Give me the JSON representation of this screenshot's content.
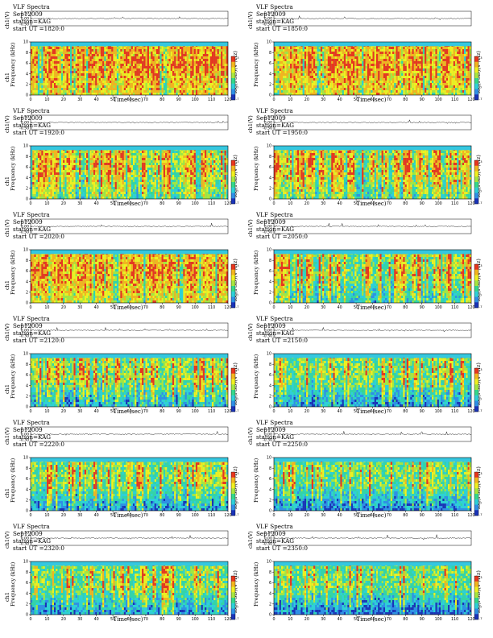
{
  "chart_data": [
    {
      "type": "heatmap",
      "title": "VLF Spectra",
      "date": "Sep12009",
      "station": "station=KAG",
      "start": "start  UT =1820:0",
      "wave_ylabel": "ch1(V)",
      "wave_yticks": [
        "0.50",
        "0.00",
        "-0.50"
      ],
      "ylabel": "Frequency (kHz)",
      "ylabel_prefix": "ch1",
      "xlabel": "Time (sec)",
      "xlim": [
        0,
        120
      ],
      "ylim": [
        0,
        10
      ],
      "xticks": [
        0,
        10,
        20,
        30,
        40,
        50,
        60,
        70,
        80,
        90,
        100,
        110,
        120
      ],
      "yticks": [
        0,
        2,
        4,
        6,
        8,
        10
      ],
      "colorbar_label": "log(PSD)(V²/Hz)",
      "colorbar_range": [
        -7,
        -3
      ],
      "colorbar_ticks": [
        "-3",
        "-7"
      ],
      "activity": 0.92,
      "seed": 11
    },
    {
      "type": "heatmap",
      "title": "VLF Spectra",
      "date": "Sep12009",
      "station": "station=KAG",
      "start": "start  UT =1850:0",
      "wave_ylabel": "ch1(V)",
      "wave_yticks": [
        "0.50",
        "0.00",
        "-0.50"
      ],
      "ylabel": "Frequency (kHz)",
      "ylabel_prefix": "",
      "xlabel": "Time (sec)",
      "xlim": [
        0,
        120
      ],
      "ylim": [
        0,
        10
      ],
      "xticks": [
        0,
        10,
        20,
        30,
        40,
        50,
        60,
        70,
        80,
        90,
        100,
        110,
        120
      ],
      "yticks": [
        0,
        2,
        4,
        6,
        8,
        10
      ],
      "colorbar_label": "log(PSD)(V²/Hz)",
      "colorbar_range": [
        -7,
        -3
      ],
      "colorbar_ticks": [
        "-3",
        "-7"
      ],
      "activity": 0.9,
      "seed": 23
    },
    {
      "type": "heatmap",
      "title": "VLF Spectra",
      "date": "Sep12009",
      "station": "station=KAG",
      "start": "start  UT =1920:0",
      "wave_ylabel": "ch1(V)",
      "wave_yticks": [
        "0.50",
        "0.00",
        "-0.50"
      ],
      "ylabel": "Frequency (kHz)",
      "ylabel_prefix": "ch1",
      "xlabel": "Time (sec)",
      "xlim": [
        0,
        120
      ],
      "ylim": [
        0,
        10
      ],
      "xticks": [
        0,
        10,
        20,
        30,
        40,
        50,
        60,
        70,
        80,
        90,
        100,
        110,
        120
      ],
      "yticks": [
        0,
        2,
        4,
        6,
        8,
        10
      ],
      "colorbar_label": "log(PSD)(V²/Hz)",
      "colorbar_range": [
        -7,
        -3
      ],
      "colorbar_ticks": [
        "-3",
        "-7"
      ],
      "activity": 0.72,
      "seed": 37
    },
    {
      "type": "heatmap",
      "title": "VLF Spectra",
      "date": "Sep12009",
      "station": "station=KAG",
      "start": "start  UT =1950:0",
      "wave_ylabel": "ch1(V)",
      "wave_yticks": [
        "0.50",
        "0.00",
        "-0.50"
      ],
      "ylabel": "Frequency (kHz)",
      "ylabel_prefix": "",
      "xlabel": "Time (sec)",
      "xlim": [
        0,
        120
      ],
      "ylim": [
        0,
        10
      ],
      "xticks": [
        0,
        10,
        20,
        30,
        40,
        50,
        60,
        70,
        80,
        90,
        100,
        110,
        120
      ],
      "yticks": [
        0,
        2,
        4,
        6,
        8,
        10
      ],
      "colorbar_label": "log(PSD)(V²/Hz)",
      "colorbar_range": [
        -7,
        -3
      ],
      "colorbar_ticks": [
        "-3",
        "-7"
      ],
      "activity": 0.7,
      "seed": 41
    },
    {
      "type": "heatmap",
      "title": "VLF Spectra",
      "date": "Sep12009",
      "station": "station=KAG",
      "start": "start  UT =2020:0",
      "wave_ylabel": "ch1(V)",
      "wave_yticks": [
        "0.50",
        "0.00",
        "-0.50"
      ],
      "ylabel": "Frequency (kHz)",
      "ylabel_prefix": "ch1",
      "xlabel": "Time (sec)",
      "xlim": [
        0,
        120
      ],
      "ylim": [
        0,
        10
      ],
      "xticks": [
        0,
        10,
        20,
        30,
        40,
        50,
        60,
        70,
        80,
        90,
        100,
        110,
        120
      ],
      "yticks": [
        0,
        2,
        4,
        6,
        8,
        10
      ],
      "colorbar_label": "log(PSD)(V²/Hz)",
      "colorbar_range": [
        -7,
        -3
      ],
      "colorbar_ticks": [
        "-3",
        "-7"
      ],
      "activity": 0.88,
      "seed": 53
    },
    {
      "type": "heatmap",
      "title": "VLF Spectra",
      "date": "Sep12009",
      "station": "station=KAG",
      "start": "start  UT =2050:0",
      "wave_ylabel": "ch1(V)",
      "wave_yticks": [
        "0.50",
        "0.00",
        "-0.50"
      ],
      "ylabel": "Frequency (kHz)",
      "ylabel_prefix": "",
      "xlabel": "Time (sec)",
      "xlim": [
        0,
        120
      ],
      "ylim": [
        0,
        10
      ],
      "xticks": [
        0,
        10,
        20,
        30,
        40,
        50,
        60,
        70,
        80,
        90,
        100,
        110,
        120
      ],
      "yticks": [
        0,
        2,
        4,
        6,
        8,
        10
      ],
      "colorbar_label": "log(PSD)(V²/Hz)",
      "colorbar_range": [
        -7,
        -3
      ],
      "colorbar_ticks": [
        "-3",
        "-7"
      ],
      "activity": 0.62,
      "seed": 67
    },
    {
      "type": "heatmap",
      "title": "VLF Spectra",
      "date": "Sep12009",
      "station": "station=KAG",
      "start": "start  UT =2120:0",
      "wave_ylabel": "ch1(V)",
      "wave_yticks": [
        "0.30",
        "0.00",
        "-0.30"
      ],
      "ylabel": "Frequency (kHz)",
      "ylabel_prefix": "ch1",
      "xlabel": "Time (sec)",
      "xlim": [
        0,
        120
      ],
      "ylim": [
        0,
        10
      ],
      "xticks": [
        0,
        10,
        20,
        30,
        40,
        50,
        60,
        70,
        80,
        90,
        100,
        110,
        120
      ],
      "yticks": [
        0,
        2,
        4,
        6,
        8,
        10
      ],
      "colorbar_label": "log(PSD)(V²/Hz)",
      "colorbar_range": [
        -7,
        -3
      ],
      "colorbar_ticks": [
        "-3",
        "-7"
      ],
      "activity": 0.35,
      "seed": 71
    },
    {
      "type": "heatmap",
      "title": "VLF Spectra",
      "date": "Sep12009",
      "station": "station=KAG",
      "start": "start  UT =2150:0",
      "wave_ylabel": "ch1(V)",
      "wave_yticks": [
        "0.30",
        "0.00",
        "-0.30"
      ],
      "ylabel": "Frequency (kHz)",
      "ylabel_prefix": "",
      "xlabel": "Time (sec)",
      "xlim": [
        0,
        120
      ],
      "ylim": [
        0,
        10
      ],
      "xticks": [
        0,
        10,
        20,
        30,
        40,
        50,
        60,
        70,
        80,
        90,
        100,
        110,
        120
      ],
      "yticks": [
        0,
        2,
        4,
        6,
        8,
        10
      ],
      "colorbar_label": "log(PSD)(V²/Hz)",
      "colorbar_range": [
        -7,
        -3
      ],
      "colorbar_ticks": [
        "-3",
        "-7"
      ],
      "activity": 0.3,
      "seed": 83
    },
    {
      "type": "heatmap",
      "title": "VLF Spectra",
      "date": "Sep12009",
      "station": "station=KAG",
      "start": "start  UT =2220:0",
      "wave_ylabel": "ch1(V)",
      "wave_yticks": [
        "0.30",
        "0.00",
        "-0.30"
      ],
      "ylabel": "Frequency (kHz)",
      "ylabel_prefix": "ch1",
      "xlabel": "Time (sec)",
      "xlim": [
        0,
        120
      ],
      "ylim": [
        0,
        10
      ],
      "xticks": [
        0,
        10,
        20,
        30,
        40,
        50,
        60,
        70,
        80,
        90,
        100,
        110,
        120
      ],
      "yticks": [
        0,
        2,
        4,
        6,
        8,
        10
      ],
      "colorbar_label": "log(PSD)(V²/Hz)",
      "colorbar_range": [
        -7,
        -3
      ],
      "colorbar_ticks": [
        "-3",
        "-7"
      ],
      "activity": 0.28,
      "seed": 97
    },
    {
      "type": "heatmap",
      "title": "VLF Spectra",
      "date": "Sep12009",
      "station": "station=KAG",
      "start": "start  UT =2250:0",
      "wave_ylabel": "ch1(V)",
      "wave_yticks": [
        "0.30",
        "0.00",
        "-0.30"
      ],
      "ylabel": "Frequency (kHz)",
      "ylabel_prefix": "",
      "xlabel": "Time (sec)",
      "xlim": [
        0,
        120
      ],
      "ylim": [
        0,
        10
      ],
      "xticks": [
        0,
        10,
        20,
        30,
        40,
        50,
        60,
        70,
        80,
        90,
        100,
        110,
        120
      ],
      "yticks": [
        0,
        2,
        4,
        6,
        8,
        10
      ],
      "colorbar_label": "log(PSD)(V²/Hz)",
      "colorbar_range": [
        -7,
        -3
      ],
      "colorbar_ticks": [
        "-3",
        "-7"
      ],
      "activity": 0.22,
      "seed": 101
    },
    {
      "type": "heatmap",
      "title": "VLF Spectra",
      "date": "Sep12009",
      "station": "station=KAG",
      "start": "start  UT =2320:0",
      "wave_ylabel": "ch1(V)",
      "wave_yticks": [
        "0.30",
        "0.00",
        "-0.30"
      ],
      "ylabel": "Frequency (kHz)",
      "ylabel_prefix": "ch1",
      "xlabel": "Time (sec)",
      "xlim": [
        0,
        120
      ],
      "ylim": [
        0,
        10
      ],
      "xticks": [
        0,
        10,
        20,
        30,
        40,
        50,
        60,
        70,
        80,
        90,
        100,
        110,
        120
      ],
      "yticks": [
        0,
        2,
        4,
        6,
        8,
        10
      ],
      "colorbar_label": "log(PSD)(V²/Hz)",
      "colorbar_range": [
        -7,
        -3
      ],
      "colorbar_ticks": [
        "-3",
        "-7"
      ],
      "activity": 0.3,
      "seed": 113
    },
    {
      "type": "heatmap",
      "title": "VLF Spectra",
      "date": "Sep12009",
      "station": "station=KAG",
      "start": "start  UT =2350:0",
      "wave_ylabel": "ch1(V)",
      "wave_yticks": [
        "0.30",
        "0.00",
        "-0.30"
      ],
      "ylabel": "Frequency (kHz)",
      "ylabel_prefix": "",
      "xlabel": "Time (sec)",
      "xlim": [
        0,
        120
      ],
      "ylim": [
        0,
        10
      ],
      "xticks": [
        0,
        10,
        20,
        30,
        40,
        50,
        60,
        70,
        80,
        90,
        100,
        110,
        120
      ],
      "yticks": [
        0,
        2,
        4,
        6,
        8,
        10
      ],
      "colorbar_label": "log(PSD)(V²/Hz)",
      "colorbar_range": [
        -7,
        -3
      ],
      "colorbar_ticks": [
        "-3",
        "-7"
      ],
      "activity": 0.14,
      "seed": 127
    }
  ]
}
